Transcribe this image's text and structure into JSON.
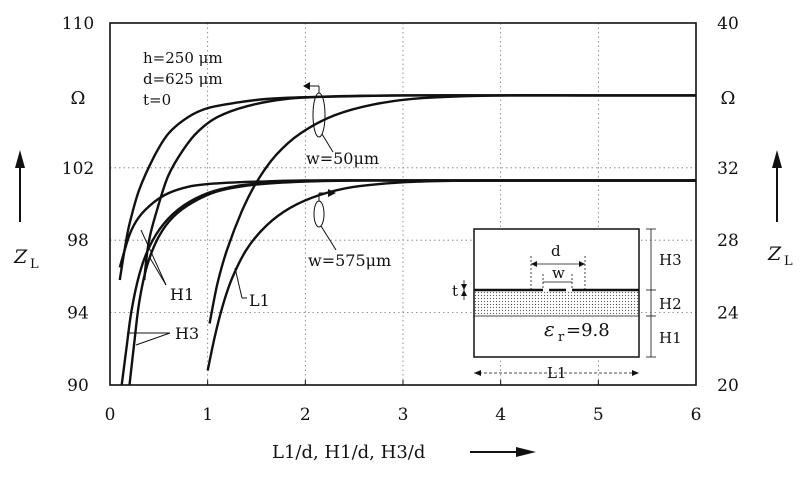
{
  "chart_data": {
    "type": "line",
    "xlabel": "L1/d, H1/d, H3/d",
    "xlim": [
      0,
      6
    ],
    "x_ticks": [
      "0",
      "1",
      "2",
      "3",
      "4",
      "5",
      "6"
    ],
    "left_axis": {
      "label_main": "Z",
      "label_sub": "L",
      "unit": "Ω",
      "ylim": [
        90,
        110
      ],
      "ticks": [
        "90",
        "94",
        "98",
        "102",
        "110"
      ],
      "tick_values": [
        90,
        94,
        98,
        102,
        110
      ]
    },
    "right_axis": {
      "label_main": "Z",
      "label_sub": "L",
      "unit": "Ω",
      "ylim": [
        20,
        40
      ],
      "ticks": [
        "20",
        "24",
        "28",
        "32",
        "40"
      ],
      "tick_values": [
        20,
        24,
        28,
        32,
        40
      ]
    },
    "grid": true,
    "params": [
      "h=250 μm",
      "d=625 μm",
      "t=0"
    ],
    "groups": [
      {
        "label": "w=50μm",
        "axis": "left"
      },
      {
        "label": "w=575μm",
        "axis": "right"
      }
    ],
    "curve_labels": [
      "H1",
      "L1",
      "H3"
    ],
    "series": [
      {
        "group": "w=50μm",
        "axis": "left",
        "points": [
          [
            0.1,
            95.8
          ],
          [
            0.15,
            97.5
          ],
          [
            0.2,
            98.9
          ],
          [
            0.3,
            100.8
          ],
          [
            0.45,
            102.6
          ],
          [
            0.6,
            103.9
          ],
          [
            0.8,
            104.8
          ],
          [
            1.0,
            105.3
          ],
          [
            1.3,
            105.6
          ],
          [
            1.6,
            105.8
          ],
          [
            2.0,
            105.9
          ],
          [
            3,
            106.0
          ],
          [
            4,
            106.0
          ],
          [
            5,
            106.0
          ],
          [
            6,
            106.0
          ]
        ]
      },
      {
        "group": "w=50μm",
        "axis": "left",
        "points": [
          [
            0.35,
            95.8
          ],
          [
            0.4,
            98.0
          ],
          [
            0.5,
            100.0
          ],
          [
            0.6,
            101.6
          ],
          [
            0.75,
            103.0
          ],
          [
            0.9,
            104.0
          ],
          [
            1.1,
            104.8
          ],
          [
            1.4,
            105.4
          ],
          [
            1.8,
            105.8
          ],
          [
            2.3,
            105.95
          ],
          [
            3,
            106.0
          ],
          [
            4,
            106.0
          ],
          [
            5,
            106.0
          ],
          [
            6,
            106.0
          ]
        ]
      },
      {
        "group": "w=50μm",
        "axis": "left",
        "points": [
          [
            1.02,
            93.4
          ],
          [
            1.1,
            95.6
          ],
          [
            1.2,
            97.5
          ],
          [
            1.35,
            99.6
          ],
          [
            1.5,
            101.2
          ],
          [
            1.7,
            102.7
          ],
          [
            1.95,
            103.9
          ],
          [
            2.3,
            104.9
          ],
          [
            2.7,
            105.5
          ],
          [
            3.2,
            105.85
          ],
          [
            4,
            106.0
          ],
          [
            5,
            106.0
          ],
          [
            6,
            106.0
          ]
        ]
      },
      {
        "group": "w=575μm",
        "axis": "right",
        "points": [
          [
            0.1,
            26.5
          ],
          [
            0.2,
            28.3
          ],
          [
            0.3,
            29.3
          ],
          [
            0.45,
            30.1
          ],
          [
            0.6,
            30.6
          ],
          [
            0.8,
            30.95
          ],
          [
            1.0,
            31.1
          ],
          [
            1.3,
            31.2
          ],
          [
            1.6,
            31.25
          ],
          [
            2.0,
            31.3
          ],
          [
            3,
            31.3
          ],
          [
            4,
            31.3
          ],
          [
            5,
            31.3
          ],
          [
            6,
            31.3
          ]
        ]
      },
      {
        "group": "w=575μm",
        "axis": "right",
        "points": [
          [
            0.12,
            20.0
          ],
          [
            0.17,
            22.1
          ],
          [
            0.22,
            24.1
          ],
          [
            0.3,
            26.1
          ],
          [
            0.4,
            27.6
          ],
          [
            0.55,
            28.9
          ],
          [
            0.75,
            29.9
          ],
          [
            1.0,
            30.6
          ],
          [
            1.3,
            31.0
          ],
          [
            1.7,
            31.2
          ],
          [
            2.2,
            31.3
          ],
          [
            3,
            31.3
          ],
          [
            4,
            31.3
          ],
          [
            5,
            31.3
          ],
          [
            6,
            31.3
          ]
        ]
      },
      {
        "group": "w=575μm",
        "axis": "right",
        "points": [
          [
            0.2,
            20.0
          ],
          [
            0.25,
            22.4
          ],
          [
            0.3,
            24.6
          ],
          [
            0.38,
            26.6
          ],
          [
            0.5,
            28.2
          ],
          [
            0.65,
            29.3
          ],
          [
            0.85,
            30.1
          ],
          [
            1.1,
            30.7
          ],
          [
            1.45,
            31.05
          ],
          [
            1.9,
            31.22
          ],
          [
            2.5,
            31.3
          ],
          [
            3,
            31.3
          ],
          [
            4,
            31.3
          ],
          [
            5,
            31.3
          ],
          [
            6,
            31.3
          ]
        ]
      },
      {
        "group": "w=575μm",
        "axis": "right",
        "points": [
          [
            1.0,
            20.8
          ],
          [
            1.07,
            22.6
          ],
          [
            1.15,
            24.3
          ],
          [
            1.25,
            25.9
          ],
          [
            1.4,
            27.5
          ],
          [
            1.6,
            28.8
          ],
          [
            1.85,
            29.8
          ],
          [
            2.15,
            30.5
          ],
          [
            2.5,
            30.95
          ],
          [
            3,
            31.2
          ],
          [
            3.5,
            31.28
          ],
          [
            4,
            31.3
          ],
          [
            5,
            31.3
          ],
          [
            6,
            31.3
          ]
        ]
      }
    ],
    "inset": {
      "labels": [
        "d",
        "w",
        "t",
        "H3",
        "H2",
        "H1",
        "L1"
      ],
      "epsilon_symbol": "ε",
      "epsilon_sub": "r",
      "epsilon_value": "=9.8"
    }
  }
}
